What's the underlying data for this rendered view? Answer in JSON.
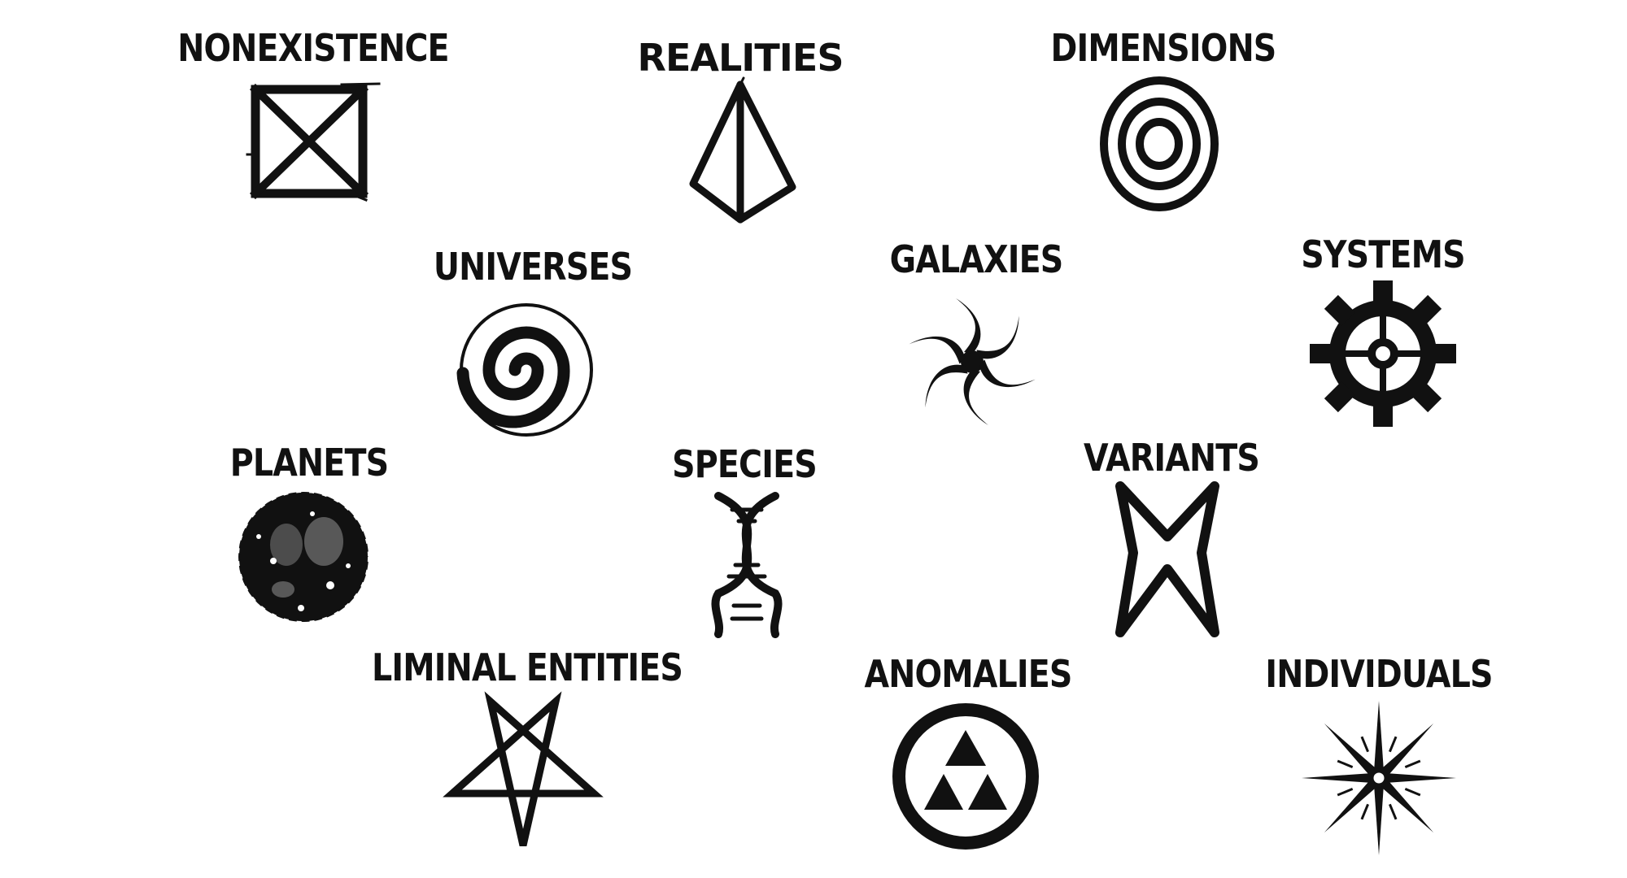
{
  "colors": {
    "ink": "#111111",
    "background": "#ffffff"
  },
  "symbols": [
    {
      "id": "nonexistence",
      "label": "NONEXISTENCE",
      "icon": "crossed-square-icon"
    },
    {
      "id": "realities",
      "label": "REALITIES",
      "icon": "pyramid-icon"
    },
    {
      "id": "dimensions",
      "label": "DIMENSIONS",
      "icon": "concentric-rings-icon"
    },
    {
      "id": "universes",
      "label": "UNIVERSES",
      "icon": "spiral-icon"
    },
    {
      "id": "galaxies",
      "label": "GALAXIES",
      "icon": "galaxy-swirl-icon"
    },
    {
      "id": "systems",
      "label": "SYSTEMS",
      "icon": "gear-icon"
    },
    {
      "id": "planets",
      "label": "PLANETS",
      "icon": "cratered-planet-icon"
    },
    {
      "id": "species",
      "label": "SPECIES",
      "icon": "dna-helix-icon"
    },
    {
      "id": "variants",
      "label": "VARIANTS",
      "icon": "butterfly-icon"
    },
    {
      "id": "liminal",
      "label": "LIMINAL ENTITIES",
      "icon": "pentagram-icon"
    },
    {
      "id": "anomalies",
      "label": "ANOMALIES",
      "icon": "triforce-circle-icon"
    },
    {
      "id": "individuals",
      "label": "INDIVIDUALS",
      "icon": "star-burst-icon"
    }
  ]
}
